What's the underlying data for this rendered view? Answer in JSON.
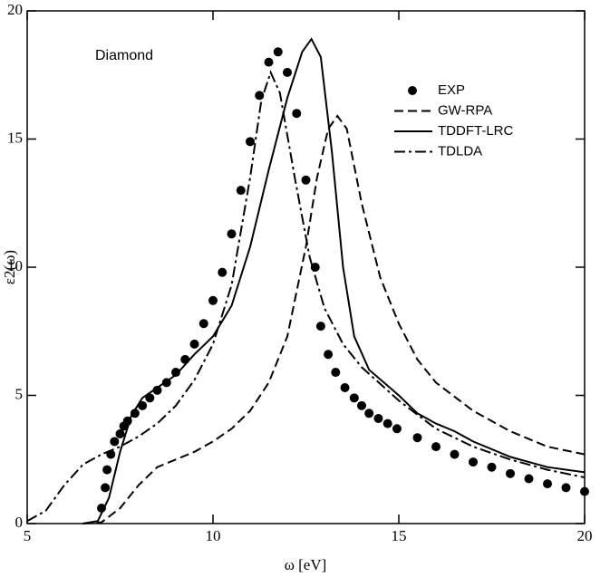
{
  "chart_data": {
    "type": "line",
    "annotation": "Diamond",
    "xlabel": "ω [eV]",
    "ylabel": "ε2(ω)",
    "xlim": [
      5,
      20
    ],
    "xticks": [
      5,
      10,
      15,
      20
    ],
    "ylim": [
      0,
      20
    ],
    "yticks": [
      0,
      5,
      10,
      15,
      20
    ],
    "legend": "upper right",
    "series": [
      {
        "name": "EXP",
        "color": "#000000",
        "style": "markers",
        "x": [
          7.0,
          7.1,
          7.15,
          7.25,
          7.35,
          7.5,
          7.6,
          7.7,
          7.9,
          8.1,
          8.3,
          8.5,
          8.75,
          9.0,
          9.25,
          9.5,
          9.75,
          10.0,
          10.25,
          10.5,
          10.75,
          11.0,
          11.25,
          11.5,
          11.75,
          12.0,
          12.25,
          12.5,
          12.75,
          12.9,
          13.1,
          13.3,
          13.55,
          13.8,
          14.0,
          14.2,
          14.45,
          14.7,
          14.95,
          15.5,
          16.0,
          16.5,
          17.0,
          17.5,
          18.0,
          18.5,
          19.0,
          19.5,
          20.0
        ],
        "values": [
          0.6,
          1.4,
          2.1,
          2.7,
          3.2,
          3.5,
          3.8,
          4.0,
          4.3,
          4.6,
          4.9,
          5.2,
          5.5,
          5.9,
          6.4,
          7.0,
          7.8,
          8.7,
          9.8,
          11.3,
          13.0,
          14.9,
          16.7,
          18.0,
          18.4,
          17.6,
          16.0,
          13.4,
          10.0,
          7.7,
          6.6,
          5.9,
          5.3,
          4.9,
          4.6,
          4.3,
          4.1,
          3.9,
          3.7,
          3.35,
          3.0,
          2.7,
          2.4,
          2.2,
          1.95,
          1.75,
          1.55,
          1.4,
          1.25
        ]
      },
      {
        "name": "GW-RPA",
        "color": "#000000",
        "style": "dashed",
        "x": [
          6.5,
          7,
          7.5,
          8,
          8.5,
          9,
          9.5,
          10,
          10.5,
          11,
          11.5,
          12,
          12.5,
          12.8,
          13.1,
          13.35,
          13.6,
          14,
          14.5,
          15,
          15.5,
          16,
          17,
          18,
          19,
          20
        ],
        "values": [
          0,
          0.05,
          0.6,
          1.5,
          2.2,
          2.5,
          2.8,
          3.2,
          3.7,
          4.4,
          5.5,
          7.3,
          10.8,
          13.5,
          15.4,
          15.9,
          15.4,
          12.5,
          9.6,
          7.8,
          6.4,
          5.5,
          4.4,
          3.6,
          3.0,
          2.7
        ]
      },
      {
        "name": "TDDFT-LRC",
        "color": "#000000",
        "style": "solid",
        "x": [
          6.5,
          6.9,
          7.2,
          7.5,
          7.8,
          8.1,
          8.5,
          9,
          9.5,
          10,
          10.5,
          11,
          11.5,
          12,
          12.4,
          12.65,
          12.9,
          13.2,
          13.5,
          13.8,
          14.2,
          15,
          15.5,
          16,
          16.5,
          17,
          18,
          19,
          20
        ],
        "values": [
          0,
          0.1,
          1.0,
          2.8,
          4.2,
          4.9,
          5.3,
          5.8,
          6.6,
          7.3,
          8.5,
          10.8,
          13.8,
          16.6,
          18.4,
          18.9,
          18.2,
          14.5,
          10.0,
          7.3,
          6.0,
          5.0,
          4.3,
          3.9,
          3.6,
          3.2,
          2.6,
          2.2,
          2.0
        ]
      },
      {
        "name": "TDLDA",
        "color": "#000000",
        "style": "dashdot",
        "x": [
          5,
          5.5,
          6,
          6.5,
          7,
          7.5,
          8,
          8.5,
          9,
          9.5,
          10,
          10.5,
          11,
          11.3,
          11.55,
          11.8,
          12.2,
          12.6,
          13,
          13.5,
          14,
          15,
          16,
          17,
          18,
          19,
          20
        ],
        "values": [
          0.1,
          0.5,
          1.5,
          2.3,
          2.7,
          3.0,
          3.4,
          3.9,
          4.6,
          5.6,
          7.0,
          9.3,
          13.5,
          16.5,
          17.6,
          16.8,
          13.5,
          10.4,
          8.4,
          7.0,
          6.1,
          4.8,
          3.7,
          3.0,
          2.5,
          2.1,
          1.8
        ]
      }
    ]
  }
}
